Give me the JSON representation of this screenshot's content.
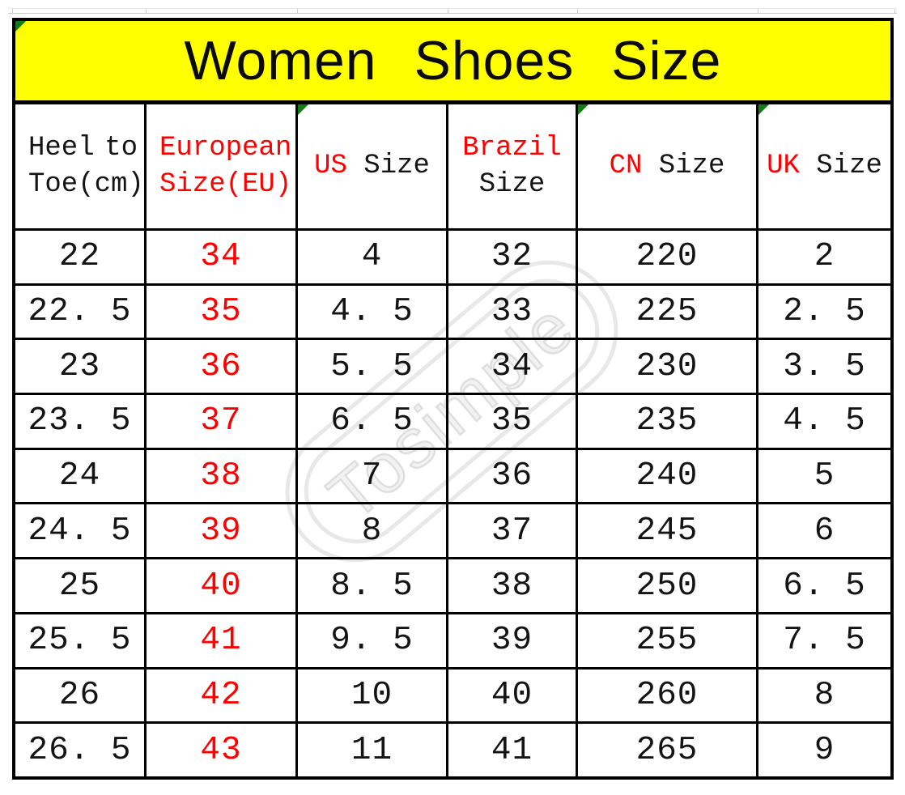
{
  "title": {
    "text": "Women Shoes Size"
  },
  "colors": {
    "banner_bg": "#ffff00",
    "accent_red": "#fe0000",
    "text_dark": "#141414",
    "border_black": "#000000",
    "triangle_green": "#0e7e12",
    "gridline_gray": "#cfcfcf",
    "watermark_gray": "rgba(0,0,0,0.10)"
  },
  "watermark": {
    "text": "Tosimple"
  },
  "table": {
    "columns": [
      {
        "id": "heel-to-toe",
        "align": "left",
        "justify_first_line": true,
        "triangle": false,
        "values_red": false,
        "lines": [
          [
            {
              "text": "Heel",
              "red": false
            },
            {
              "text": "to",
              "red": false
            }
          ],
          [
            {
              "text": "Toe(cm)",
              "red": false
            }
          ]
        ]
      },
      {
        "id": "eu-size",
        "align": "left",
        "justify_first_line": false,
        "triangle": false,
        "values_red": true,
        "lines": [
          [
            {
              "text": "European",
              "red": true
            }
          ],
          [
            {
              "text": "Size(EU)",
              "red": true
            }
          ]
        ]
      },
      {
        "id": "us-size",
        "align": "center",
        "justify_first_line": false,
        "triangle": true,
        "values_red": false,
        "lines": [
          [
            {
              "text": "US",
              "red": true
            },
            {
              "text": " Size",
              "red": false
            }
          ]
        ]
      },
      {
        "id": "brazil-size",
        "align": "center",
        "justify_first_line": false,
        "triangle": false,
        "values_red": false,
        "lines": [
          [
            {
              "text": "Brazil",
              "red": true
            }
          ],
          [
            {
              "text": "Size",
              "red": false
            }
          ]
        ]
      },
      {
        "id": "cn-size",
        "align": "center",
        "justify_first_line": false,
        "triangle": true,
        "values_red": false,
        "lines": [
          [
            {
              "text": "CN",
              "red": true
            },
            {
              "text": " Size",
              "red": false
            }
          ]
        ]
      },
      {
        "id": "uk-size",
        "align": "center",
        "justify_first_line": false,
        "triangle": true,
        "values_red": false,
        "lines": [
          [
            {
              "text": "UK",
              "red": true
            },
            {
              "text": " Size",
              "red": false
            }
          ]
        ]
      }
    ],
    "rows": [
      [
        "22",
        "34",
        "4",
        "32",
        "220",
        "2"
      ],
      [
        "22. 5",
        "35",
        "4. 5",
        "33",
        "225",
        "2. 5"
      ],
      [
        "23",
        "36",
        "5. 5",
        "34",
        "230",
        "3. 5"
      ],
      [
        "23. 5",
        "37",
        "6. 5",
        "35",
        "235",
        "4. 5"
      ],
      [
        "24",
        "38",
        "7",
        "36",
        "240",
        "5"
      ],
      [
        "24. 5",
        "39",
        "8",
        "37",
        "245",
        "6"
      ],
      [
        "25",
        "40",
        "8. 5",
        "38",
        "250",
        "6. 5"
      ],
      [
        "25. 5",
        "41",
        "9. 5",
        "39",
        "255",
        "7. 5"
      ],
      [
        "26",
        "42",
        "10",
        "40",
        "260",
        "8"
      ],
      [
        "26. 5",
        "43",
        "11",
        "41",
        "265",
        "9"
      ]
    ]
  }
}
